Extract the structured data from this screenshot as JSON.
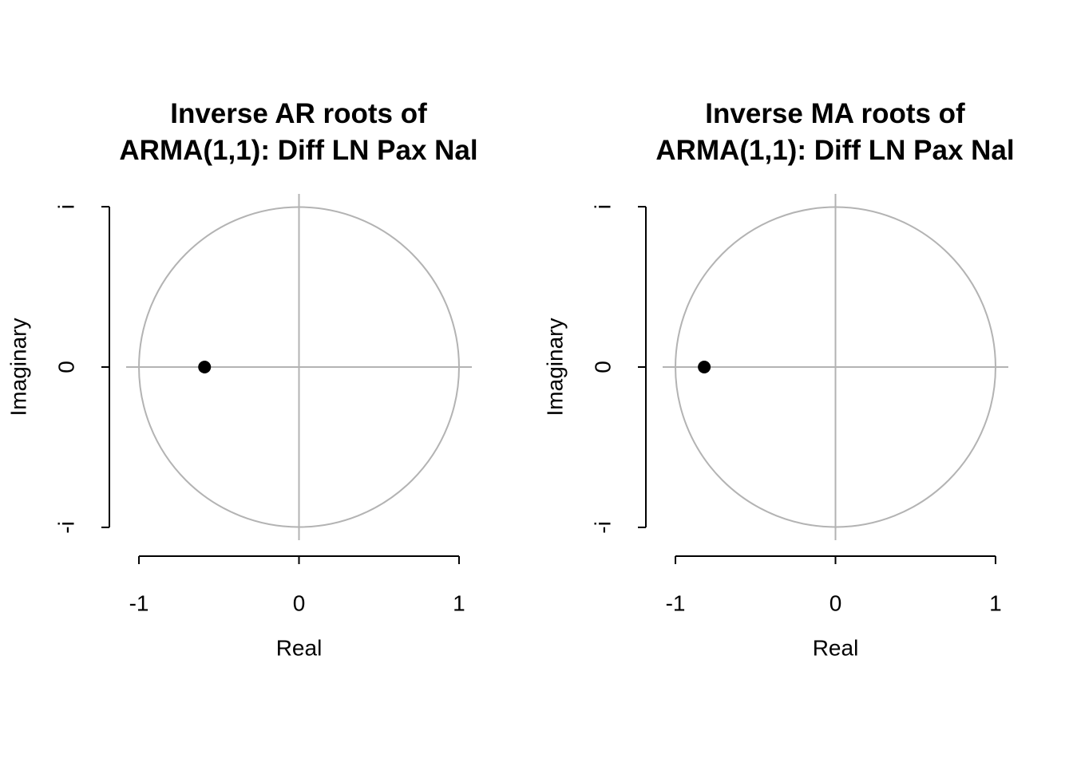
{
  "chart_data": [
    {
      "type": "scatter",
      "title": "Inverse AR roots of\nARMA(1,1): Diff LN Pax Nal",
      "xlabel": "Real",
      "ylabel": "Imaginary",
      "x": [
        -0.59
      ],
      "y": [
        0
      ],
      "color": "#000000",
      "xlim": [
        -1.08,
        1.08
      ],
      "ylim": [
        -1.08,
        1.08
      ],
      "xticks": [
        -1,
        0,
        1
      ],
      "yticks": [
        {
          "value": -1,
          "label": "-i"
        },
        0,
        {
          "value": 1,
          "label": "i"
        }
      ]
    },
    {
      "type": "scatter",
      "title": "Inverse MA roots of\nARMA(1,1): Diff LN Pax Nal",
      "xlabel": "Real",
      "ylabel": "Imaginary",
      "x": [
        -0.82
      ],
      "y": [
        0
      ],
      "color": "#000000",
      "xlim": [
        -1.08,
        1.08
      ],
      "ylim": [
        -1.08,
        1.08
      ],
      "xticks": [
        -1,
        0,
        1
      ],
      "yticks": [
        {
          "value": -1,
          "label": "-i"
        },
        0,
        {
          "value": 1,
          "label": "i"
        }
      ]
    }
  ]
}
